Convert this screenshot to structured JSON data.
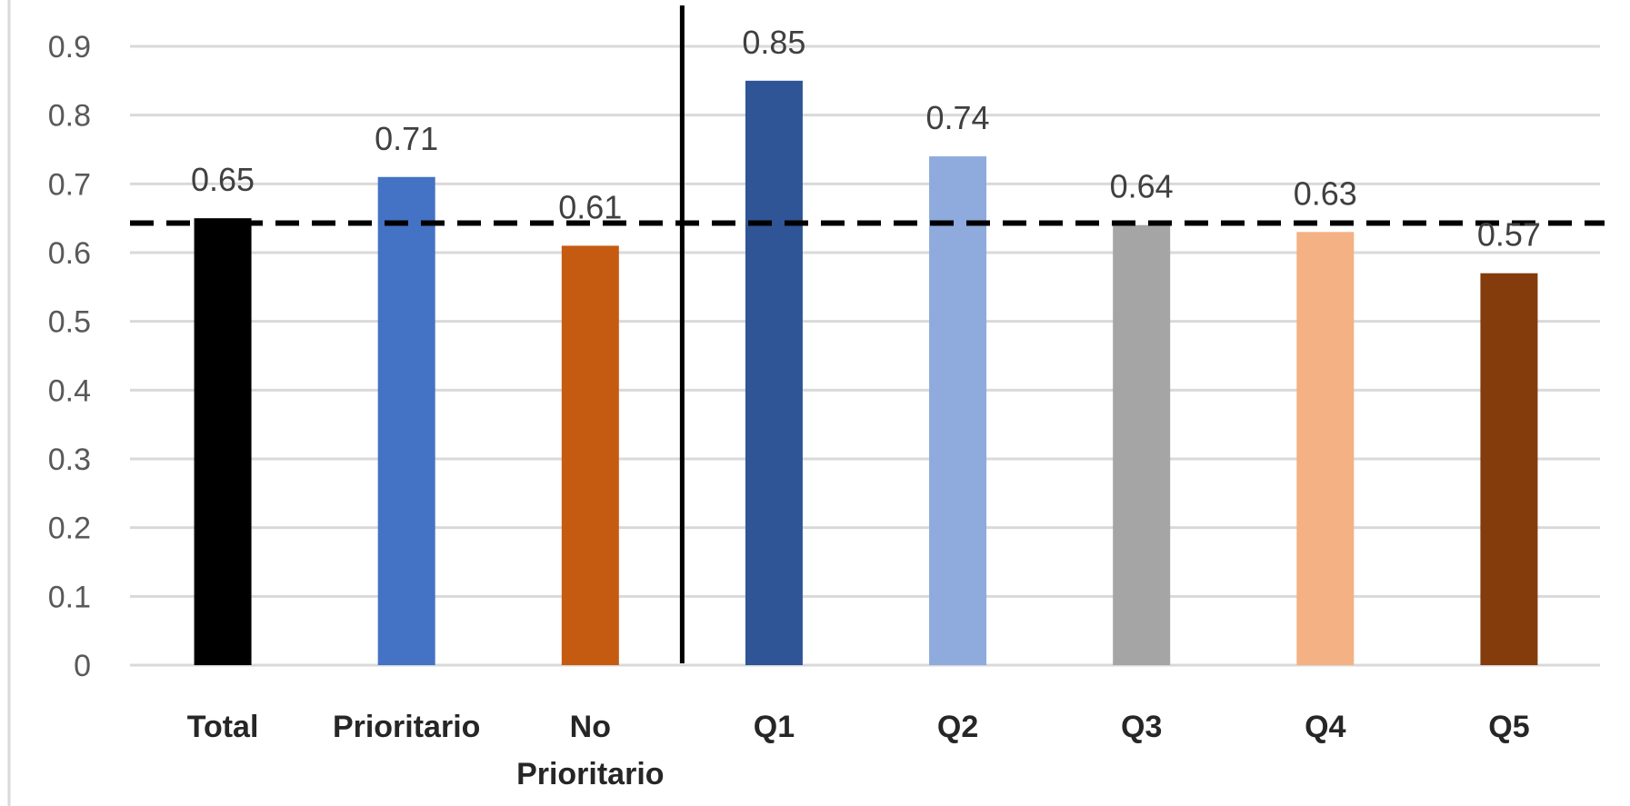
{
  "chart_data": {
    "type": "bar",
    "title": "",
    "xlabel": "",
    "ylabel": "",
    "ylim": [
      0,
      0.9
    ],
    "y_ticks": [
      "0",
      "0.1",
      "0.2",
      "0.3",
      "0.4",
      "0.5",
      "0.6",
      "0.7",
      "0.8",
      "0.9"
    ],
    "grid": true,
    "legend": "none",
    "categories": [
      [
        "Total"
      ],
      [
        "Prioritario"
      ],
      [
        "No",
        "Prioritario"
      ],
      [
        "Q1"
      ],
      [
        "Q2"
      ],
      [
        "Q3"
      ],
      [
        "Q4"
      ],
      [
        "Q5"
      ]
    ],
    "values": [
      0.65,
      0.71,
      0.61,
      0.85,
      0.74,
      0.64,
      0.63,
      0.57
    ],
    "data_labels": [
      "0.65",
      "0.71",
      "0.61",
      "0.85",
      "0.74",
      "0.64",
      "0.63",
      "0.57"
    ],
    "bar_colors": [
      "#000000",
      "#4472C4",
      "#C55A11",
      "#2F5597",
      "#8FAADC",
      "#A5A5A5",
      "#F4B183",
      "#843C0C"
    ],
    "reference_line": {
      "style": "dashed",
      "value": 0.643,
      "color": "#000000"
    },
    "separator": {
      "style": "solid",
      "between": [
        "No Prioritario",
        "Q1"
      ],
      "color": "#000000"
    },
    "gridline_color": "#D9D9D9"
  }
}
